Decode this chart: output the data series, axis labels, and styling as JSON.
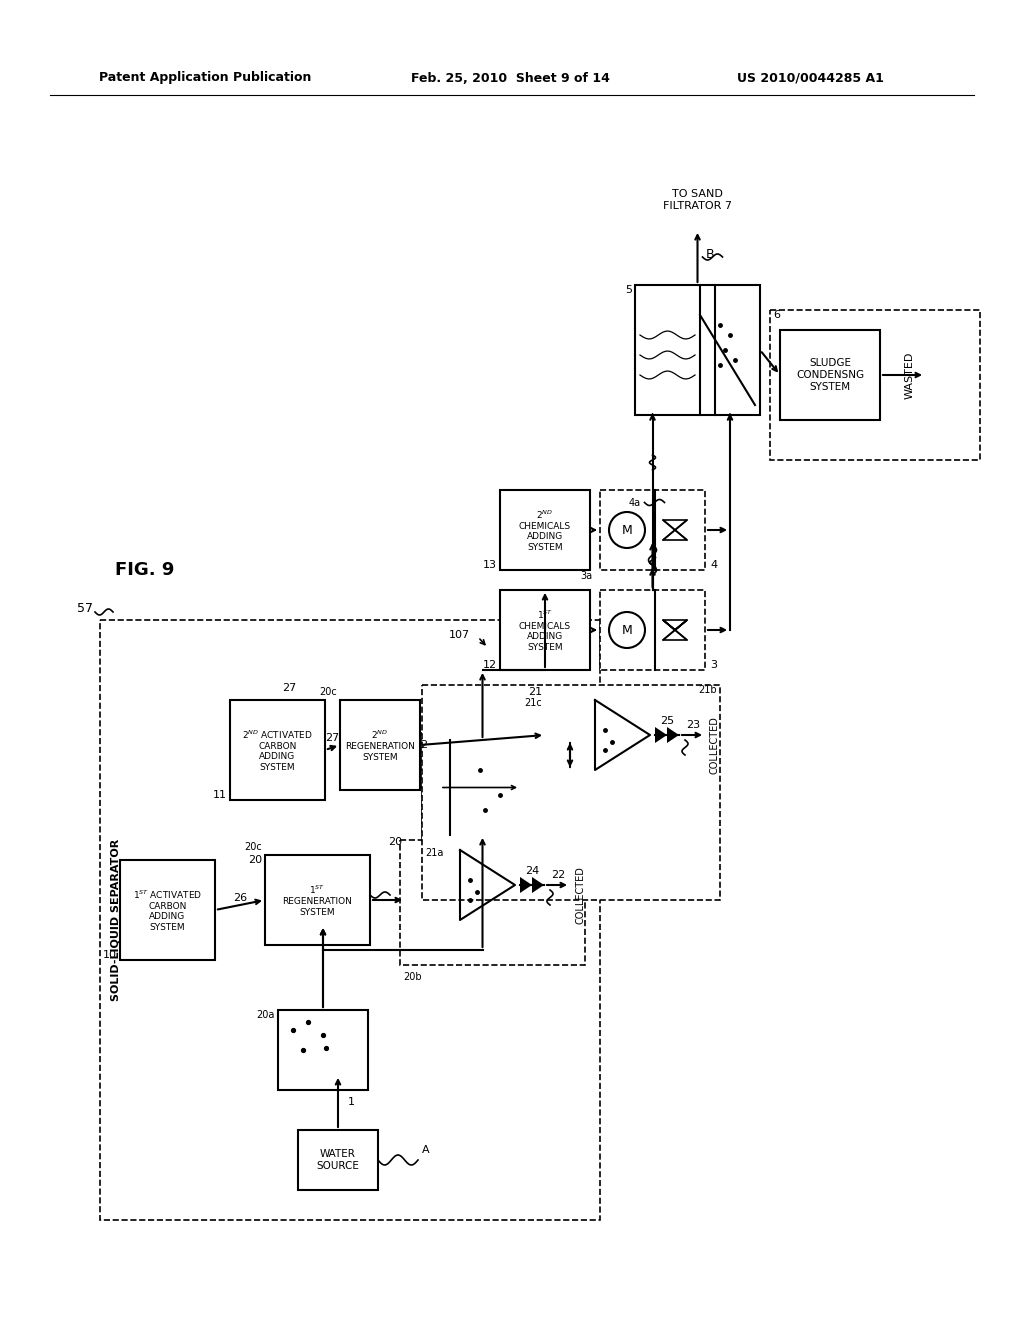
{
  "bg": "#ffffff",
  "header_left": "Patent Application Publication",
  "header_mid": "Feb. 25, 2010  Sheet 9 of 14",
  "header_right": "US 2010/0044285 A1"
}
